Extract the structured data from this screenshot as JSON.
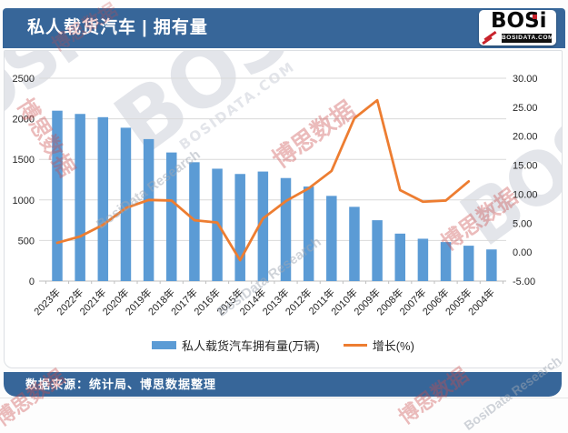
{
  "header": {
    "title": "私人载货汽车 | 拥有量"
  },
  "logo": {
    "text": "BOSi",
    "domain": "BOSIDATA.COM"
  },
  "footer": {
    "source": "数据来源：统计局、博思数据整理"
  },
  "watermark": {
    "logo_text": "BOSi",
    "domain": "BOSIDATA.COM",
    "cn": "博思数据",
    "research": "BosiData Research"
  },
  "colors": {
    "header_bar": "#376699",
    "bar_fill": "#5B9BD5",
    "line_stroke": "#ED7D31",
    "gridline": "#D9D9D9",
    "axis_text": "#262626"
  },
  "chart_data": {
    "type": "bar",
    "combo": "bar+line",
    "categories": [
      "2023年",
      "2022年",
      "2021年",
      "2020年",
      "2019年",
      "2018年",
      "2017年",
      "2016年",
      "2015年",
      "2014年",
      "2013年",
      "2012年",
      "2011年",
      "2010年",
      "2009年",
      "2008年",
      "2007年",
      "2006年",
      "2005年",
      "2004年"
    ],
    "series": [
      {
        "name": "私人载货汽车拥有量(万辆)",
        "type": "bar",
        "axis": "left",
        "color": "#5B9BD5",
        "values": [
          2100,
          2060,
          2020,
          1890,
          1750,
          1585,
          1465,
          1385,
          1320,
          1350,
          1270,
          1165,
          1050,
          915,
          750,
          585,
          522,
          481,
          436,
          390
        ]
      },
      {
        "name": "增长(%)",
        "type": "line",
        "axis": "right",
        "color": "#ED7D31",
        "values": [
          1.6,
          2.7,
          4.7,
          7.6,
          9.0,
          8.9,
          5.5,
          5.1,
          -1.4,
          5.8,
          8.8,
          11.0,
          14.0,
          23.1,
          26.2,
          10.7,
          8.7,
          8.9,
          12.2,
          null
        ]
      }
    ],
    "left_axis": {
      "min": 0,
      "max": 2500,
      "ticks": [
        "0",
        "500",
        "1000",
        "1500",
        "2000",
        "2500"
      ]
    },
    "right_axis": {
      "min": -5,
      "max": 30,
      "ticks": [
        "-5.00",
        "0.00",
        "5.00",
        "10.00",
        "15.00",
        "20.00",
        "25.00",
        "30.00"
      ]
    },
    "grid": true,
    "legend_position": "bottom",
    "x_label_rotation": -45
  }
}
